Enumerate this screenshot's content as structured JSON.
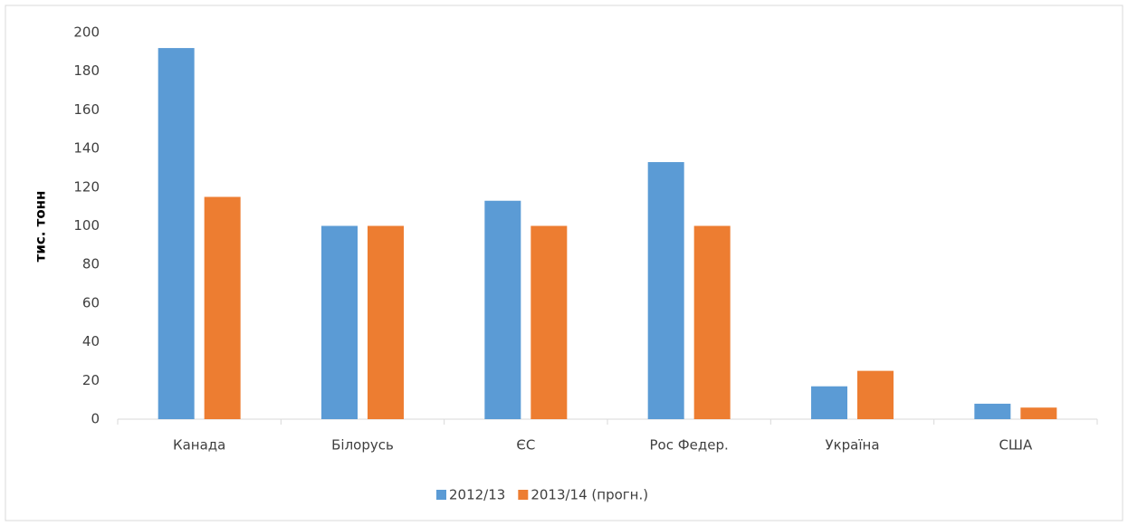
{
  "chart_data": {
    "type": "bar",
    "ylabel": "тис. тонн",
    "categories": [
      "Канада",
      "Білорусь",
      "ЄС",
      "Рос Федер.",
      "Україна",
      "США"
    ],
    "series": [
      {
        "name": "2012/13",
        "color": "#5b9bd5",
        "values": [
          192,
          100,
          113,
          133,
          17,
          8
        ]
      },
      {
        "name": "2013/14 (прогн.)",
        "color": "#ed7d31",
        "values": [
          115,
          100,
          100,
          100,
          25,
          6
        ]
      }
    ],
    "ylim": [
      0,
      200
    ],
    "yticks": [
      0,
      20,
      40,
      60,
      80,
      100,
      120,
      140,
      160,
      180,
      200
    ],
    "grid": false,
    "legend": "bottom"
  }
}
